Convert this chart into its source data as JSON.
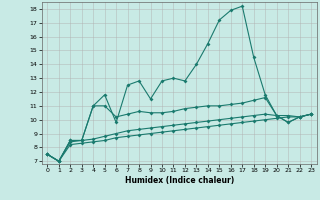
{
  "xlabel": "Humidex (Indice chaleur)",
  "xlim": [
    -0.5,
    23.5
  ],
  "ylim": [
    6.8,
    18.5
  ],
  "yticks": [
    7,
    8,
    9,
    10,
    11,
    12,
    13,
    14,
    15,
    16,
    17,
    18
  ],
  "xticks": [
    0,
    1,
    2,
    3,
    4,
    5,
    6,
    7,
    8,
    9,
    10,
    11,
    12,
    13,
    14,
    15,
    16,
    17,
    18,
    19,
    20,
    21,
    22,
    23
  ],
  "background_color": "#c8eae5",
  "grid_color": "#b0b0b0",
  "line_color": "#1a7a6e",
  "series": [
    {
      "x": [
        0,
        1,
        2,
        3,
        4,
        5,
        6,
        7,
        8,
        9,
        10,
        11,
        12,
        13,
        14,
        15,
        16,
        17,
        18,
        19,
        20,
        21,
        22,
        23
      ],
      "y": [
        7.5,
        7.0,
        8.5,
        8.5,
        11.0,
        11.8,
        9.8,
        12.5,
        12.8,
        11.5,
        12.8,
        13.0,
        12.8,
        14.0,
        15.5,
        17.2,
        17.9,
        18.2,
        14.5,
        11.8,
        10.3,
        9.8,
        10.2,
        10.4
      ]
    },
    {
      "x": [
        0,
        1,
        2,
        3,
        4,
        5,
        6,
        7,
        8,
        9,
        10,
        11,
        12,
        13,
        14,
        15,
        16,
        17,
        18,
        19,
        20,
        21,
        22,
        23
      ],
      "y": [
        7.5,
        7.0,
        8.5,
        8.5,
        11.0,
        11.0,
        10.2,
        10.4,
        10.6,
        10.5,
        10.5,
        10.6,
        10.8,
        10.9,
        11.0,
        11.0,
        11.1,
        11.2,
        11.4,
        11.6,
        10.3,
        9.8,
        10.2,
        10.4
      ]
    },
    {
      "x": [
        0,
        1,
        2,
        3,
        4,
        5,
        6,
        7,
        8,
        9,
        10,
        11,
        12,
        13,
        14,
        15,
        16,
        17,
        18,
        19,
        20,
        21,
        22,
        23
      ],
      "y": [
        7.5,
        7.0,
        8.4,
        8.5,
        8.6,
        8.8,
        9.0,
        9.2,
        9.3,
        9.4,
        9.5,
        9.6,
        9.7,
        9.8,
        9.9,
        10.0,
        10.1,
        10.2,
        10.3,
        10.4,
        10.3,
        10.3,
        10.2,
        10.4
      ]
    },
    {
      "x": [
        0,
        1,
        2,
        3,
        4,
        5,
        6,
        7,
        8,
        9,
        10,
        11,
        12,
        13,
        14,
        15,
        16,
        17,
        18,
        19,
        20,
        21,
        22,
        23
      ],
      "y": [
        7.5,
        7.0,
        8.2,
        8.3,
        8.4,
        8.5,
        8.7,
        8.8,
        8.9,
        9.0,
        9.1,
        9.2,
        9.3,
        9.4,
        9.5,
        9.6,
        9.7,
        9.8,
        9.9,
        10.0,
        10.1,
        10.2,
        10.2,
        10.4
      ]
    }
  ]
}
